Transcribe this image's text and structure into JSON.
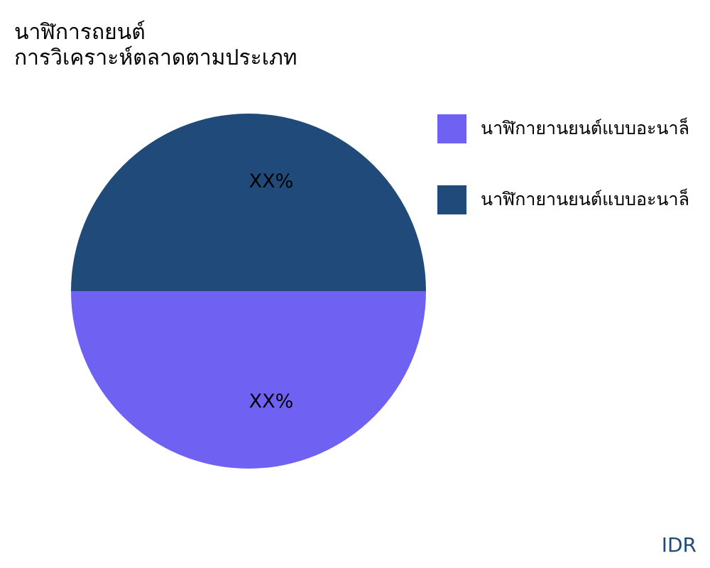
{
  "chart_data": {
    "type": "pie",
    "title": [
      "นาฬิการถยนต์",
      "การวิเคราะห์ตลาดตามประเภท"
    ],
    "slices": [
      {
        "label": "นาฬิกายานยนต์แบบอะนาล็",
        "value": 50,
        "data_label": "XX%",
        "color": "#6f61f2"
      },
      {
        "label": "นาฬิกายานยนต์แบบอะนาล็",
        "value": 50,
        "data_label": "XX%",
        "color": "#1f4a79"
      }
    ],
    "legend_position": "right"
  },
  "footer": {
    "currency": "IDR"
  }
}
